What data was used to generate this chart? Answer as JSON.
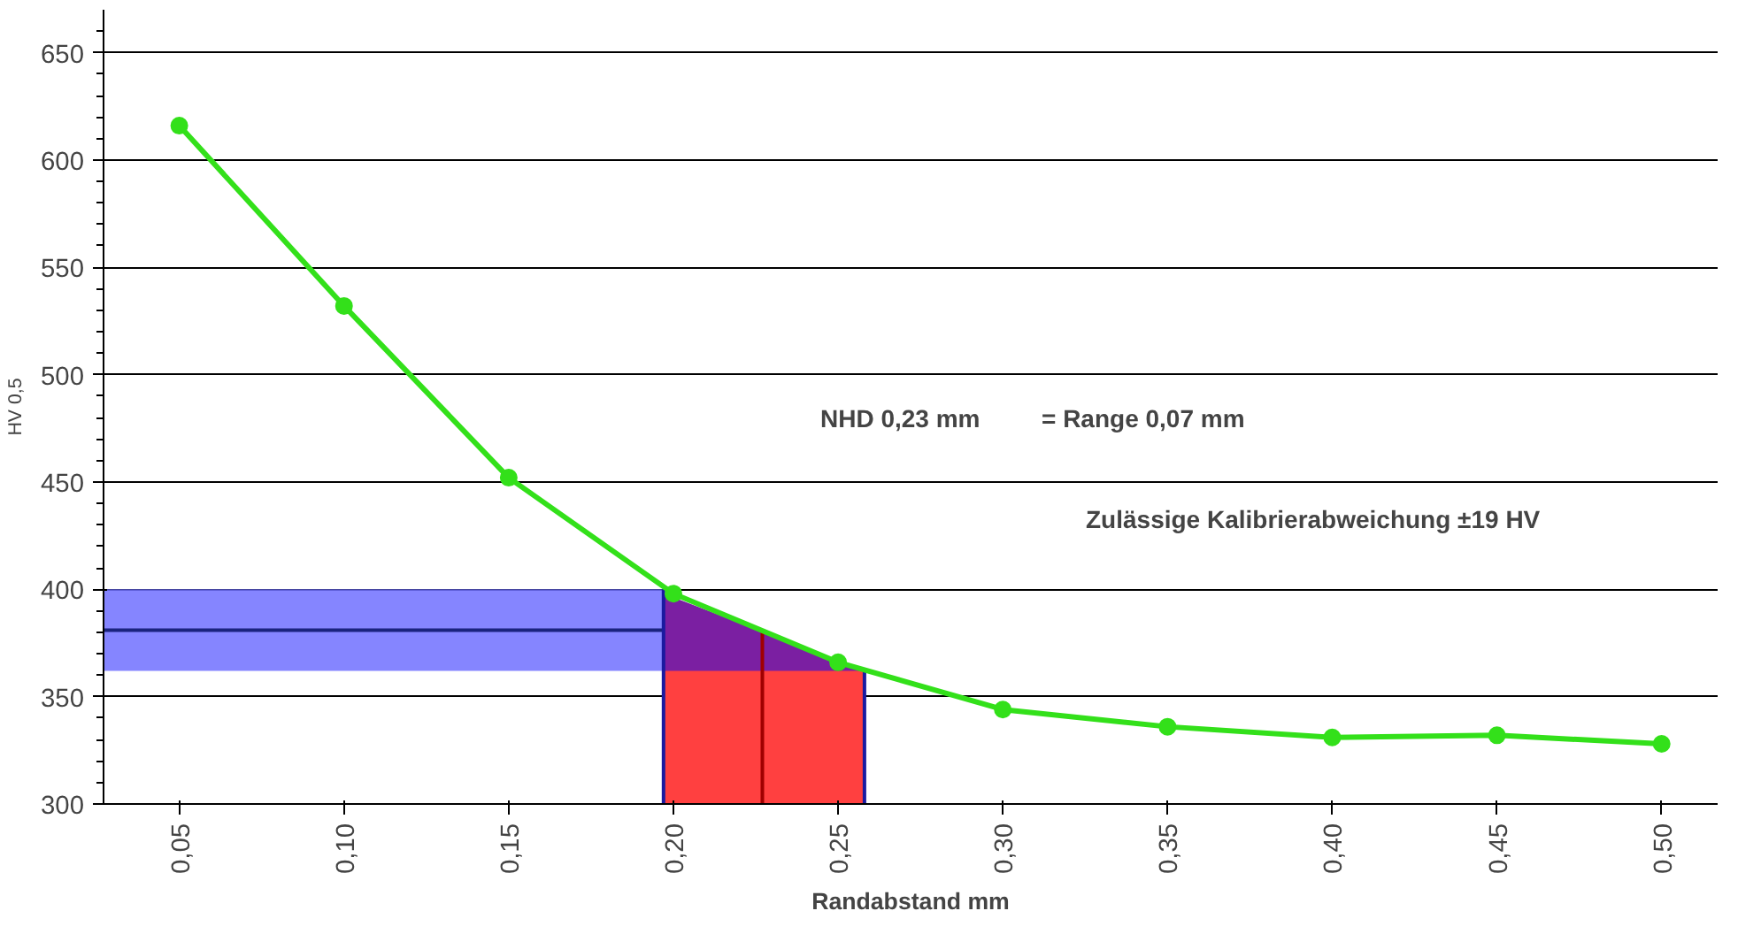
{
  "chart_data": {
    "type": "line",
    "xlabel": "Randabstand mm",
    "ylabel": "HV 0,5",
    "x": [
      0.05,
      0.1,
      0.15,
      0.2,
      0.25,
      0.3,
      0.35,
      0.4,
      0.45,
      0.5
    ],
    "series": [
      {
        "type": "area",
        "color": "#7b1fa2",
        "x": [
          0.197,
          0.258
        ],
        "values": [
          398,
          362
        ]
      },
      {
        "type": "area",
        "color": "#ff4040",
        "x": [
          0.197,
          0.258
        ],
        "values": [
          362,
          362
        ]
      },
      {
        "type": "line",
        "color": "#1a237e",
        "x": [
          0.027,
          0.197
        ],
        "values": [
          381,
          381
        ],
        "lower": [
          362,
          362
        ],
        "upper": [
          400,
          400
        ],
        "marker": "none"
      },
      {
        "type": "line",
        "color": "#1a1aa0",
        "x": [
          0.197,
          0.197
        ],
        "values": [
          300,
          400
        ],
        "marker": "none"
      },
      {
        "type": "line",
        "color": "#1a1aa0",
        "x": [
          0.258,
          0.258
        ],
        "values": [
          300,
          362
        ],
        "marker": "none"
      },
      {
        "type": "line",
        "color": "#a00000",
        "x": [
          0.227,
          0.227
        ],
        "values": [
          300,
          380
        ],
        "marker": "none"
      },
      {
        "color": "#33e01a",
        "values": [
          616,
          532,
          452,
          398,
          366,
          344,
          336,
          331,
          332,
          328
        ],
        "marker": "circle"
      }
    ],
    "xlim": [
      0.027,
      0.517
    ],
    "ylim": [
      300,
      670
    ],
    "xticks": [
      {
        "value": 0.05,
        "label": "0,05"
      },
      {
        "value": 0.1,
        "label": "0,10"
      },
      {
        "value": 0.15,
        "label": "0,15"
      },
      {
        "value": 0.2,
        "label": "0,20"
      },
      {
        "value": 0.25,
        "label": "0,25"
      },
      {
        "value": 0.3,
        "label": "0,30"
      },
      {
        "value": 0.35,
        "label": "0,35"
      },
      {
        "value": 0.4,
        "label": "0,40"
      },
      {
        "value": 0.45,
        "label": "0,45"
      },
      {
        "value": 0.5,
        "label": "0,50"
      }
    ],
    "yticks": [
      300,
      350,
      400,
      450,
      500,
      550,
      600,
      650
    ],
    "grid": "y",
    "annotations": [
      "NHD 0,23 mm",
      "= Range 0,07 mm",
      "Zulässige Kalibrierabweichung ±19 HV"
    ]
  }
}
